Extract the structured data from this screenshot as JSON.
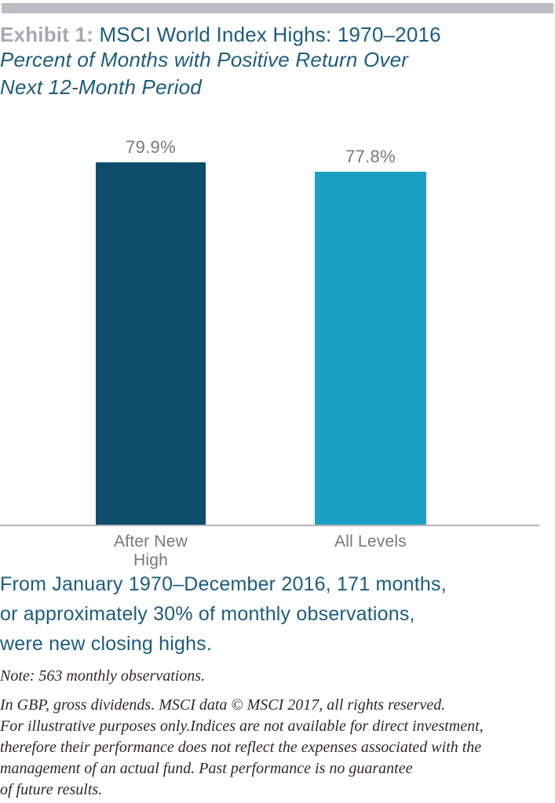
{
  "header": {
    "exhibit_label": "Exhibit 1:",
    "title": " MSCI World Index Highs: 1970–2016",
    "subtitle_lines": [
      "Percent of Months with Positive Return Over",
      "Next 12-Month Period"
    ]
  },
  "chart_data": {
    "type": "bar",
    "title": "MSCI World Index Highs: 1970–2016",
    "subtitle": "Percent of Months with Positive Return Over Next 12-Month Period",
    "categories": [
      "After New High",
      "All Levels"
    ],
    "values": [
      79.9,
      77.8
    ],
    "value_labels": [
      "79.9%",
      "77.8%"
    ],
    "bar_colors": [
      "#0e4d6b",
      "#1aa0c4"
    ],
    "ylim": [
      0,
      100
    ],
    "xlabel": "",
    "ylabel": "",
    "grid": false,
    "legend": "none",
    "axis_color": "#b1b3b5",
    "label_color": "#77787a"
  },
  "callout": {
    "lines": [
      "From January 1970–December 2016, 171 months,",
      "or approximately 30% of monthly observations,",
      "were new closing highs."
    ]
  },
  "notes": {
    "note1": "Note: 563 monthly observations.",
    "note2_lines": [
      "In GBP, gross dividends. MSCI data © MSCI 2017, all rights reserved.",
      "For illustrative purposes only.Indices are not available for direct investment,",
      "therefore their performance does not reflect the expenses associated with the",
      "management of an actual fund. Past performance is no guarantee",
      "of future results."
    ]
  },
  "colors": {
    "accent_teal": "#1d5c7e",
    "exhibit_gray": "#a6a8ab",
    "top_bar_gray": "#bcbdc0"
  }
}
